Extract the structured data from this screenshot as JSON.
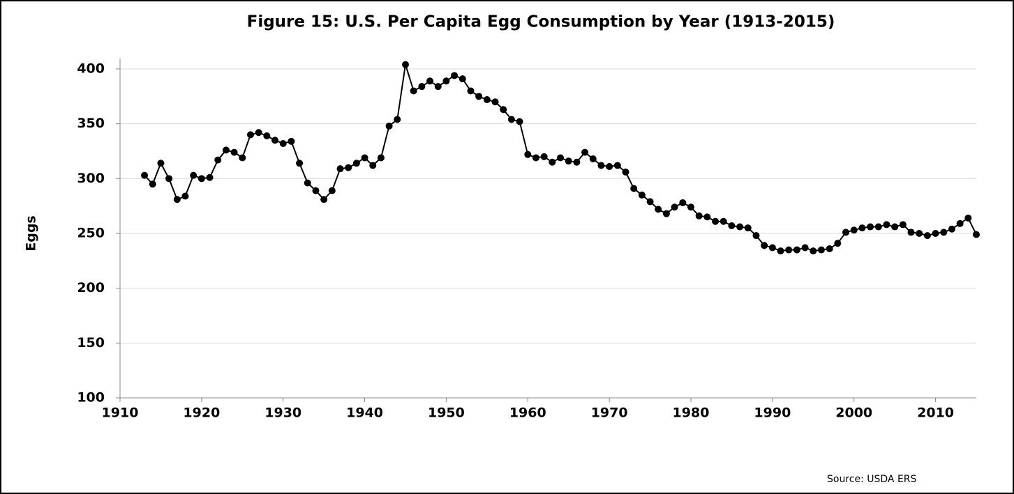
{
  "chart_data": {
    "type": "line",
    "title": "Figure 15: U.S. Per Capita Egg Consumption by Year (1913-2015)",
    "y_label": "Eggs",
    "source": "Source: USDA ERS",
    "x": [
      1913,
      1914,
      1915,
      1916,
      1917,
      1918,
      1919,
      1920,
      1921,
      1922,
      1923,
      1924,
      1925,
      1926,
      1927,
      1928,
      1929,
      1930,
      1931,
      1932,
      1933,
      1934,
      1935,
      1936,
      1937,
      1938,
      1939,
      1940,
      1941,
      1942,
      1943,
      1944,
      1945,
      1946,
      1947,
      1948,
      1949,
      1950,
      1951,
      1952,
      1953,
      1954,
      1955,
      1956,
      1957,
      1958,
      1959,
      1960,
      1961,
      1962,
      1963,
      1964,
      1965,
      1966,
      1967,
      1968,
      1969,
      1970,
      1971,
      1972,
      1973,
      1974,
      1975,
      1976,
      1977,
      1978,
      1979,
      1980,
      1981,
      1982,
      1983,
      1984,
      1985,
      1986,
      1987,
      1988,
      1989,
      1990,
      1991,
      1992,
      1993,
      1994,
      1995,
      1996,
      1997,
      1998,
      1999,
      2000,
      2001,
      2002,
      2003,
      2004,
      2005,
      2006,
      2007,
      2008,
      2009,
      2010,
      2011,
      2012,
      2013,
      2014,
      2015
    ],
    "series": [
      {
        "color": "#000000",
        "values": [
          303,
          295,
          314,
          300,
          281,
          284,
          303,
          300,
          301,
          317,
          326,
          324,
          319,
          340,
          342,
          339,
          335,
          332,
          334,
          314,
          296,
          289,
          281,
          289,
          309,
          310,
          314,
          319,
          312,
          319,
          348,
          354,
          404,
          380,
          384,
          389,
          384,
          389,
          394,
          391,
          380,
          375,
          372,
          370,
          363,
          354,
          352,
          322,
          319,
          320,
          315,
          319,
          316,
          315,
          324,
          318,
          312,
          311,
          312,
          306,
          291,
          285,
          279,
          272,
          268,
          274,
          278,
          274,
          266,
          265,
          261,
          261,
          257,
          256,
          255,
          248,
          239,
          237,
          234,
          235,
          235,
          237,
          234,
          235,
          236,
          241,
          251,
          253,
          255,
          256,
          256,
          258,
          256,
          258,
          251,
          250,
          248,
          250,
          251,
          254,
          259,
          264,
          249
        ]
      }
    ],
    "xlim": [
      1910,
      2015
    ],
    "xticks": [
      1910,
      1920,
      1930,
      1940,
      1950,
      1960,
      1970,
      1980,
      1990,
      2000,
      2010
    ],
    "ylim": [
      100,
      400
    ],
    "yticks": [
      100,
      150,
      200,
      250,
      300,
      350,
      400
    ],
    "grid": true
  }
}
